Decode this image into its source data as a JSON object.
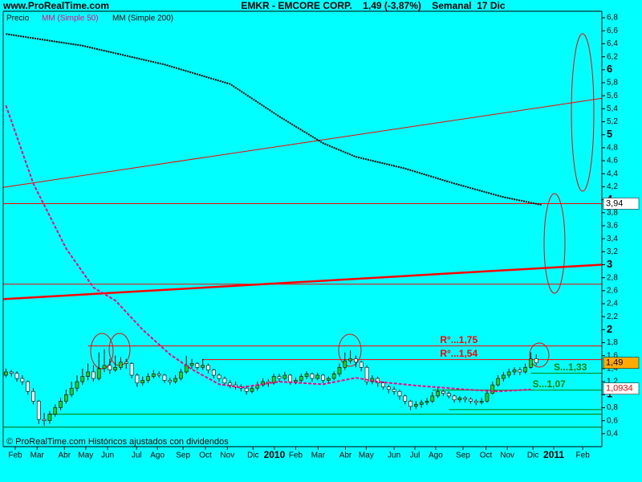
{
  "site": "www.ProRealTime.com",
  "header": "EMKR - EMCORE CORP.    1,49 (-3,87%)    Semanal  17 Dic",
  "footer": "© ProRealTime.com Históricos ajustados con dividendos",
  "chart_data": {
    "type": "candlestick",
    "price_name": "Precio",
    "up_color": "#22cc22",
    "down_color": "#ffffff",
    "candles": [
      [
        1.3,
        1.4,
        1.27,
        1.35
      ],
      [
        1.35,
        1.38,
        1.28,
        1.33
      ],
      [
        1.33,
        1.36,
        1.2,
        1.25
      ],
      [
        1.25,
        1.3,
        1.15,
        1.2
      ],
      [
        1.2,
        1.22,
        1.0,
        1.05
      ],
      [
        1.05,
        1.1,
        0.85,
        0.9
      ],
      [
        0.9,
        0.92,
        0.55,
        0.62
      ],
      [
        0.62,
        0.72,
        0.52,
        0.6
      ],
      [
        0.6,
        0.75,
        0.55,
        0.7
      ],
      [
        0.7,
        0.85,
        0.66,
        0.8
      ],
      [
        0.8,
        0.95,
        0.76,
        0.9
      ],
      [
        0.9,
        1.08,
        0.86,
        1.0
      ],
      [
        1.0,
        1.2,
        0.96,
        1.1
      ],
      [
        1.1,
        1.3,
        1.05,
        1.2
      ],
      [
        1.2,
        1.4,
        1.15,
        1.28
      ],
      [
        1.28,
        1.48,
        1.22,
        1.35
      ],
      [
        1.35,
        1.45,
        1.2,
        1.25
      ],
      [
        1.25,
        1.65,
        1.22,
        1.4
      ],
      [
        1.4,
        1.7,
        1.35,
        1.45
      ],
      [
        1.45,
        1.55,
        1.32,
        1.38
      ],
      [
        1.38,
        1.6,
        1.35,
        1.42
      ],
      [
        1.42,
        1.58,
        1.38,
        1.5
      ],
      [
        1.5,
        1.55,
        1.4,
        1.48
      ],
      [
        1.48,
        1.5,
        1.25,
        1.3
      ],
      [
        1.3,
        1.33,
        1.12,
        1.18
      ],
      [
        1.18,
        1.28,
        1.14,
        1.22
      ],
      [
        1.22,
        1.33,
        1.18,
        1.28
      ],
      [
        1.28,
        1.38,
        1.25,
        1.32
      ],
      [
        1.32,
        1.36,
        1.26,
        1.3
      ],
      [
        1.3,
        1.32,
        1.18,
        1.22
      ],
      [
        1.22,
        1.26,
        1.15,
        1.2
      ],
      [
        1.2,
        1.3,
        1.17,
        1.25
      ],
      [
        1.25,
        1.4,
        1.22,
        1.35
      ],
      [
        1.35,
        1.6,
        1.32,
        1.45
      ],
      [
        1.45,
        1.55,
        1.4,
        1.48
      ],
      [
        1.48,
        1.5,
        1.38,
        1.42
      ],
      [
        1.42,
        1.55,
        1.38,
        1.45
      ],
      [
        1.45,
        1.48,
        1.33,
        1.38
      ],
      [
        1.38,
        1.4,
        1.25,
        1.3
      ],
      [
        1.3,
        1.33,
        1.2,
        1.25
      ],
      [
        1.25,
        1.28,
        1.14,
        1.18
      ],
      [
        1.18,
        1.22,
        1.1,
        1.15
      ],
      [
        1.15,
        1.2,
        1.08,
        1.12
      ],
      [
        1.12,
        1.16,
        1.05,
        1.1
      ],
      [
        1.1,
        1.14,
        1.0,
        1.05
      ],
      [
        1.05,
        1.14,
        1.02,
        1.1
      ],
      [
        1.1,
        1.2,
        1.06,
        1.15
      ],
      [
        1.15,
        1.25,
        1.12,
        1.2
      ],
      [
        1.2,
        1.24,
        1.12,
        1.18
      ],
      [
        1.18,
        1.32,
        1.15,
        1.28
      ],
      [
        1.28,
        1.32,
        1.2,
        1.25
      ],
      [
        1.25,
        1.35,
        1.22,
        1.3
      ],
      [
        1.3,
        1.32,
        1.15,
        1.2
      ],
      [
        1.2,
        1.26,
        1.16,
        1.22
      ],
      [
        1.22,
        1.32,
        1.18,
        1.28
      ],
      [
        1.28,
        1.36,
        1.24,
        1.32
      ],
      [
        1.32,
        1.34,
        1.2,
        1.25
      ],
      [
        1.25,
        1.34,
        1.22,
        1.3
      ],
      [
        1.3,
        1.32,
        1.18,
        1.22
      ],
      [
        1.22,
        1.28,
        1.18,
        1.25
      ],
      [
        1.25,
        1.36,
        1.22,
        1.32
      ],
      [
        1.32,
        1.48,
        1.28,
        1.42
      ],
      [
        1.42,
        1.65,
        1.38,
        1.52
      ],
      [
        1.52,
        1.68,
        1.48,
        1.55
      ],
      [
        1.55,
        1.6,
        1.42,
        1.5
      ],
      [
        1.5,
        1.52,
        1.36,
        1.42
      ],
      [
        1.42,
        1.45,
        1.15,
        1.2
      ],
      [
        1.2,
        1.3,
        1.16,
        1.25
      ],
      [
        1.25,
        1.28,
        1.12,
        1.18
      ],
      [
        1.18,
        1.2,
        1.08,
        1.12
      ],
      [
        1.12,
        1.15,
        1.02,
        1.08
      ],
      [
        1.08,
        1.12,
        1.0,
        1.05
      ],
      [
        1.05,
        1.08,
        0.92,
        0.98
      ],
      [
        0.98,
        1.0,
        0.85,
        0.9
      ],
      [
        0.9,
        0.92,
        0.76,
        0.82
      ],
      [
        0.82,
        0.9,
        0.78,
        0.85
      ],
      [
        0.85,
        0.92,
        0.8,
        0.88
      ],
      [
        0.88,
        0.95,
        0.84,
        0.9
      ],
      [
        0.9,
        1.04,
        0.87,
        0.98
      ],
      [
        0.98,
        1.1,
        0.95,
        1.05
      ],
      [
        1.05,
        1.08,
        0.98,
        1.02
      ],
      [
        1.02,
        1.05,
        0.94,
        0.98
      ],
      [
        0.98,
        1.0,
        0.88,
        0.92
      ],
      [
        0.92,
        0.98,
        0.88,
        0.95
      ],
      [
        0.95,
        0.98,
        0.88,
        0.93
      ],
      [
        0.93,
        0.96,
        0.86,
        0.9
      ],
      [
        0.9,
        0.93,
        0.84,
        0.88
      ],
      [
        0.88,
        0.95,
        0.85,
        0.9
      ],
      [
        0.9,
        1.08,
        0.88,
        1.02
      ],
      [
        1.02,
        1.2,
        1.0,
        1.15
      ],
      [
        1.15,
        1.3,
        1.12,
        1.25
      ],
      [
        1.25,
        1.35,
        1.2,
        1.3
      ],
      [
        1.3,
        1.4,
        1.26,
        1.35
      ],
      [
        1.35,
        1.42,
        1.3,
        1.38
      ],
      [
        1.38,
        1.42,
        1.3,
        1.35
      ],
      [
        1.35,
        1.48,
        1.32,
        1.42
      ],
      [
        1.42,
        1.65,
        1.4,
        1.55
      ],
      [
        1.55,
        1.62,
        1.45,
        1.49
      ]
    ],
    "series": [
      {
        "name": "MM (Simple 50)",
        "color": "#ff0080",
        "x": [
          0,
          5,
          11,
          16,
          20,
          25,
          30,
          34,
          39,
          43,
          50,
          58,
          64,
          68,
          75,
          84,
          90,
          96
        ],
        "values": [
          5.45,
          4.25,
          3.25,
          2.65,
          2.45,
          2.0,
          1.62,
          1.39,
          1.16,
          1.11,
          1.2,
          1.16,
          1.26,
          1.2,
          1.14,
          1.08,
          1.05,
          1.08
        ]
      },
      {
        "name": "MM (Simple 200)",
        "color": "#000000",
        "x": [
          0,
          14,
          29,
          41,
          50,
          58,
          64,
          73,
          82,
          91,
          98
        ],
        "values": [
          6.55,
          6.37,
          6.08,
          5.78,
          5.28,
          4.87,
          4.66,
          4.48,
          4.25,
          4.04,
          3.92
        ]
      }
    ],
    "trendlines": [
      {
        "x": [
          -0.5,
          109
        ],
        "y": [
          4.19,
          5.56
        ],
        "color": "#ff0000",
        "bold": false
      },
      {
        "x": [
          -0.5,
          109
        ],
        "y": [
          2.47,
          3.0
        ],
        "color": "#ff0000",
        "bold": true
      }
    ],
    "hlines": [
      {
        "value": 3.94,
        "color": "#ff0000",
        "from": -0.5
      },
      {
        "value": 2.7,
        "color": "#ff0000",
        "from": -0.5
      },
      {
        "value": 1.75,
        "color": "#ff0000",
        "from": 15
      },
      {
        "value": 1.54,
        "color": "#ff0000",
        "from": 36
      },
      {
        "value": 1.33,
        "color": "#008000",
        "from": 96
      },
      {
        "value": 1.07,
        "color": "#008000",
        "from": 78
      },
      {
        "value": 0.77,
        "color": "#008000",
        "from": 81
      },
      {
        "value": 0.7,
        "color": "#008000",
        "from": 8
      },
      {
        "value": 0.5,
        "color": "#006400",
        "from": -0.5
      }
    ],
    "annotations": [
      {
        "text": "R°...1,75",
        "value": 1.75,
        "x": 79.4,
        "color": "#ff0000"
      },
      {
        "text": "R°...1,54",
        "value": 1.54,
        "x": 79.4,
        "color": "#ff0000"
      },
      {
        "text": "S...1,33",
        "value": 1.33,
        "x": 100.2,
        "color": "#008000"
      },
      {
        "text": "S...1,07",
        "value": 1.07,
        "x": 96.3,
        "color": "#008000"
      }
    ],
    "price_labels": [
      {
        "value": 3.94,
        "label": "3,94",
        "bg": "#ffffff",
        "color": "#000000"
      },
      {
        "value": 1.49,
        "label": "1,49",
        "bg": "#ffaa00",
        "color": "#000000"
      },
      {
        "value": 1.0934,
        "label": "1,0934",
        "bg": "#ffffff",
        "color": "#ff0000"
      }
    ],
    "xlim": [
      -0.5,
      109
    ],
    "ylim": [
      0.2,
      6.9
    ],
    "xticks": [
      {
        "value": 1.7,
        "label": "Feb"
      },
      {
        "value": 5.7,
        "label": "Mar"
      },
      {
        "value": 10.7,
        "label": "Abr"
      },
      {
        "value": 14.6,
        "label": "May"
      },
      {
        "value": 18.6,
        "label": "Jun"
      },
      {
        "value": 23.9,
        "label": "Jul"
      },
      {
        "value": 27.7,
        "label": "Ago"
      },
      {
        "value": 32.4,
        "label": "Sep"
      },
      {
        "value": 36.5,
        "label": "Oct"
      },
      {
        "value": 40.5,
        "label": "Nov"
      },
      {
        "value": 45.2,
        "label": "Dic"
      },
      {
        "value": 49.1,
        "label": "2010"
      },
      {
        "value": 53,
        "label": "Feb"
      },
      {
        "value": 57.1,
        "label": "Mar"
      },
      {
        "value": 62.1,
        "label": "Abr"
      },
      {
        "value": 65.9,
        "label": "May"
      },
      {
        "value": 71,
        "label": "Jun"
      },
      {
        "value": 74.8,
        "label": "Jul"
      },
      {
        "value": 78.6,
        "label": "Ago"
      },
      {
        "value": 83.6,
        "label": "Sep"
      },
      {
        "value": 87.8,
        "label": "Oct"
      },
      {
        "value": 91.7,
        "label": "Nov"
      },
      {
        "value": 96.4,
        "label": "Dic"
      },
      {
        "value": 100.2,
        "label": "2011"
      },
      {
        "value": 105.5,
        "label": "Feb"
      }
    ],
    "yticks": [
      {
        "value": 6.8,
        "label": "6,8"
      },
      {
        "value": 6.6,
        "label": "6,6"
      },
      {
        "value": 6.4,
        "label": "6,4"
      },
      {
        "value": 6.2,
        "label": "6,2"
      },
      6,
      {
        "value": 5.8,
        "label": "5,8"
      },
      {
        "value": 5.6,
        "label": "5,6"
      },
      {
        "value": 5.4,
        "label": "5,4"
      },
      {
        "value": 5.2,
        "label": "5,2"
      },
      5,
      {
        "value": 4.8,
        "label": "4,8"
      },
      {
        "value": 4.6,
        "label": "4,6"
      },
      {
        "value": 4.4,
        "label": "4,4"
      },
      {
        "value": 4.2,
        "label": "4,2"
      },
      4,
      {
        "value": 3.8,
        "label": "3,8"
      },
      {
        "value": 3.6,
        "label": "3,6"
      },
      {
        "value": 3.4,
        "label": "3,4"
      },
      {
        "value": 3.2,
        "label": "3,2"
      },
      3,
      {
        "value": 2.8,
        "label": "2,8"
      },
      {
        "value": 2.6,
        "label": "2,6"
      },
      {
        "value": 2.4,
        "label": "2,4"
      },
      {
        "value": 2.2,
        "label": "2,2"
      },
      2,
      {
        "value": 1.8,
        "label": "1,8"
      },
      {
        "value": 1.6,
        "label": "1,6"
      },
      {
        "value": 1.4,
        "label": "1,4"
      },
      {
        "value": 1.2,
        "label": "1,2"
      },
      1,
      {
        "value": 0.8,
        "label": "0,8"
      },
      {
        "value": 0.6,
        "label": "0,6"
      },
      {
        "value": 0.4,
        "label": "0,4"
      }
    ]
  }
}
